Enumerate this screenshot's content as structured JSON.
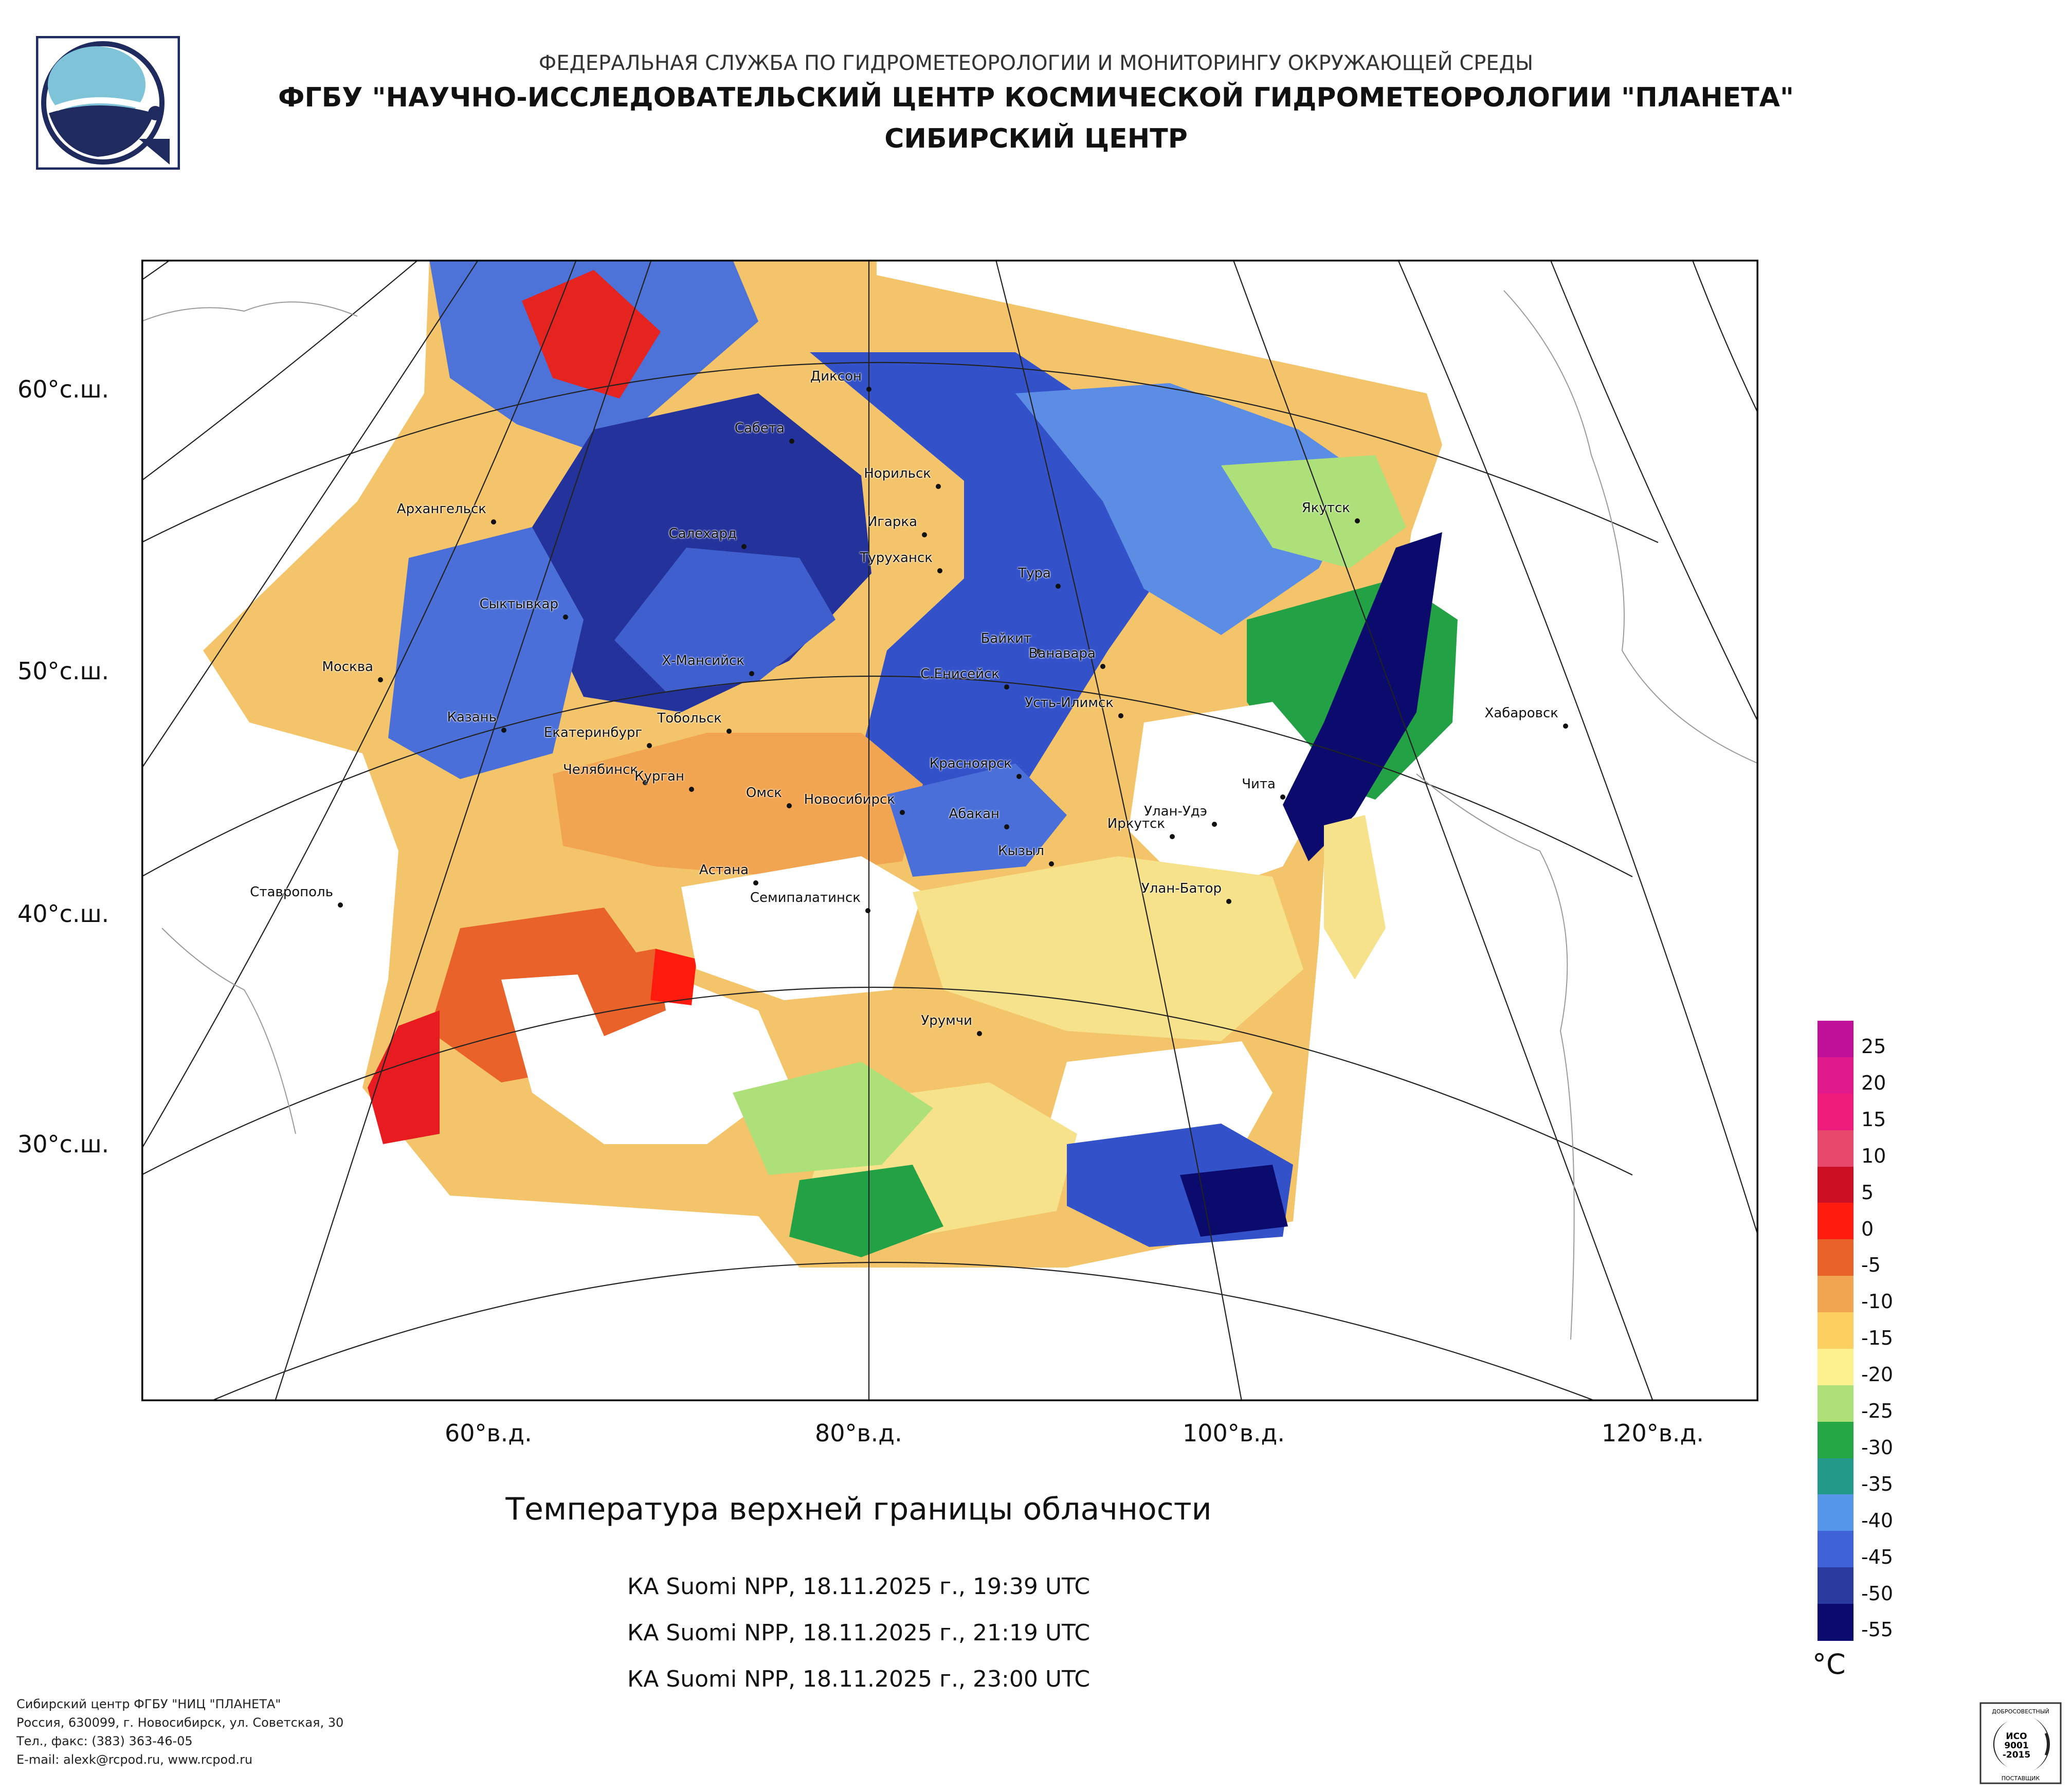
{
  "header": {
    "line1": "ФЕДЕРАЛЬНАЯ СЛУЖБА ПО ГИДРОМЕТЕОРОЛОГИИ И МОНИТОРИНГУ ОКРУЖАЮЩЕЙ СРЕДЫ",
    "line2": "ФГБУ \"НАУЧНО-ИССЛЕДОВАТЕЛЬСКИЙ ЦЕНТР КОСМИЧЕСКОЙ ГИДРОМЕТЕОРОЛОГИИ \"ПЛАНЕТА\"",
    "line3": "СИБИРСКИЙ ЦЕНТР"
  },
  "logo": {
    "name": "planeta-logo"
  },
  "map": {
    "title": "Температура верхней границы облачности",
    "passes": [
      "КА Suomi NPP, 18.11.2025 г., 19:39 UTC",
      "КА Suomi NPP, 18.11.2025 г., 21:19 UTC",
      "КА Suomi NPP, 18.11.2025 г., 23:00 UTC"
    ],
    "lat_labels": [
      "60°с.ш.",
      "50°с.ш.",
      "40°с.ш.",
      "30°с.ш."
    ],
    "lon_labels": [
      "60°в.д.",
      "80°в.д.",
      "100°в.д.",
      "120°в.д."
    ],
    "cities": [
      {
        "name": "Диксон"
      },
      {
        "name": "Сабета"
      },
      {
        "name": "Норильск"
      },
      {
        "name": "Игарка"
      },
      {
        "name": "Якутск"
      },
      {
        "name": "Архангельск"
      },
      {
        "name": "Салехард"
      },
      {
        "name": "Туруханск"
      },
      {
        "name": "Тура"
      },
      {
        "name": "Сыктывкар"
      },
      {
        "name": "Байкит"
      },
      {
        "name": "Ванавара"
      },
      {
        "name": "Москва"
      },
      {
        "name": "Х-Мансийск"
      },
      {
        "name": "С.Енисейск"
      },
      {
        "name": "Усть-Илимск"
      },
      {
        "name": "Хабаровск"
      },
      {
        "name": "Казань"
      },
      {
        "name": "Тобольск"
      },
      {
        "name": "Екатеринбург"
      },
      {
        "name": "Красноярск"
      },
      {
        "name": "Челябинск"
      },
      {
        "name": "Курган"
      },
      {
        "name": "Чита"
      },
      {
        "name": "Омск"
      },
      {
        "name": "Новосибирск"
      },
      {
        "name": "Абакан"
      },
      {
        "name": "Улан-Удэ"
      },
      {
        "name": "Иркутск"
      },
      {
        "name": "Кызыл"
      },
      {
        "name": "Астана"
      },
      {
        "name": "Ставрополь"
      },
      {
        "name": "Улан-Батор"
      },
      {
        "name": "Семипалатинск"
      },
      {
        "name": "Урумчи"
      }
    ]
  },
  "legend": {
    "unit": "°C",
    "labels": [
      "25",
      "20",
      "15",
      "10",
      "5",
      "0",
      "-5",
      "-10",
      "-15",
      "-20",
      "-25",
      "-30",
      "-35",
      "-40",
      "-45",
      "-50",
      "-55"
    ],
    "colors": [
      "#c0109a",
      "#e01a8c",
      "#ee1c7a",
      "#e8486c",
      "#cc0f22",
      "#ff1b0e",
      "#e8622a",
      "#f2a550",
      "#fcd060",
      "#fdf08e",
      "#aee07a",
      "#26a745",
      "#23998a",
      "#5797ea",
      "#3f63d6",
      "#2a3a9e",
      "#0b0b6e"
    ]
  },
  "footer": {
    "lines": [
      "Сибирский центр ФГБУ \"НИЦ \"ПЛАНЕТА\"",
      "Россия, 630099, г. Новосибирск, ул. Советская, 30",
      "Тел., факс: (383) 363-46-05",
      "E-mail: alexk@rcpod.ru, www.rcpod.ru"
    ]
  },
  "iso_badge": {
    "top": "ДОБРОСОВЕСТНЫЙ",
    "line1": "ИСО",
    "line2": "9001",
    "line3": "-2015",
    "bottom": "ПОСТАВЩИК"
  }
}
